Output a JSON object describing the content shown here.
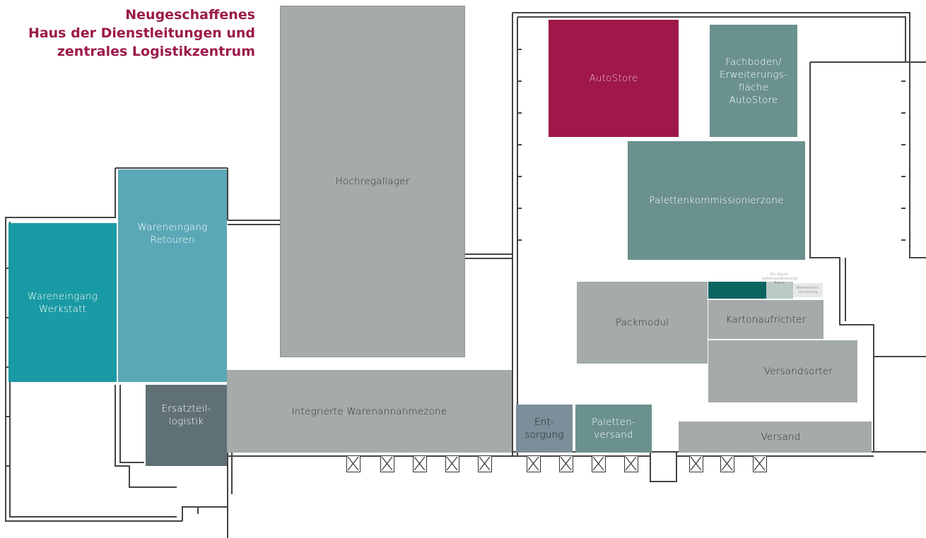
{
  "title": {
    "line1": "Neugeschaffenes",
    "line2": "Haus der Dienstleitungen und",
    "line3": "zentrales Logistikzentrum"
  },
  "zones": {
    "hochregallager": "Hochregallager",
    "autostore": "AutoStore",
    "fachboden": "Fachboden/\nErweiterungs-\nfläche\nAutoStore",
    "palettenkommissionierzone": "Palettenkommissionierzone",
    "wareneingang_werkstatt": "Wareneingang\nWerkstatt",
    "wareneingang_retouren": "Wareneingang\nRetouren",
    "ersatzteillogistik": "Ersatzteil-\nlogistik",
    "integrierte_warenannahmezone": "Integrierte Warenannahmezone",
    "packmodul": "Packmodul",
    "einstueck": "Ein-Stück-\nkommissionierung/\nBatch",
    "wendekreis": "Wendekreis-\nroutenzug",
    "kartonaufrichter": "Kartonaufrichter",
    "versandsorter": "Versandsorter",
    "entsorgung": "Ent-\nsorgung",
    "palettenversand": "Paletten-\nversand",
    "versand": "Versand"
  },
  "dock_gates": 13,
  "colors": {
    "title": "#9b1a4a",
    "grey_zone": "#a5aaab",
    "autostore": "#a0174a",
    "sage": "#6a918d",
    "teal_dark": "#1a9aa4",
    "teal_light": "#5aa7b6",
    "slate": "#5f7175",
    "slate_blue": "#7b8e99",
    "dark_green": "#0c6460",
    "light_sage": "#bacac7",
    "light_grey": "#e7e8e8",
    "wall": "#444444"
  }
}
